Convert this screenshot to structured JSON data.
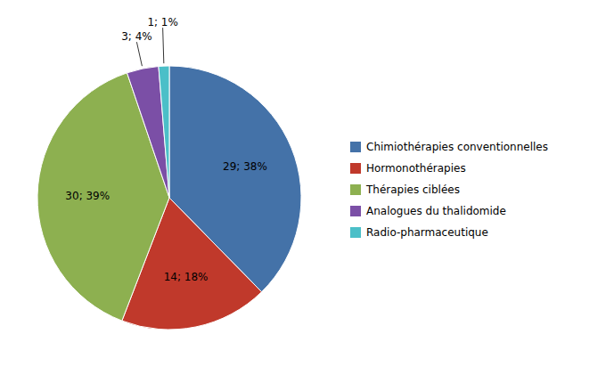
{
  "chart_data": {
    "type": "pie",
    "categories": [
      "Chimiothérapies conventionnelles",
      "Hormonothérapies",
      "Thérapies ciblées",
      "Analogues du thalidomide",
      "Radio-pharmaceutique"
    ],
    "values": [
      29,
      14,
      30,
      3,
      1
    ],
    "value_labels": [
      "29; 38%",
      "14; 18%",
      "30; 39%",
      "3; 4%",
      "1; 1%"
    ],
    "colors": [
      "#4472a8",
      "#c0392b",
      "#8db050",
      "#7b4fa6",
      "#4bbfc8"
    ],
    "data_labels": true,
    "legend": "right"
  }
}
